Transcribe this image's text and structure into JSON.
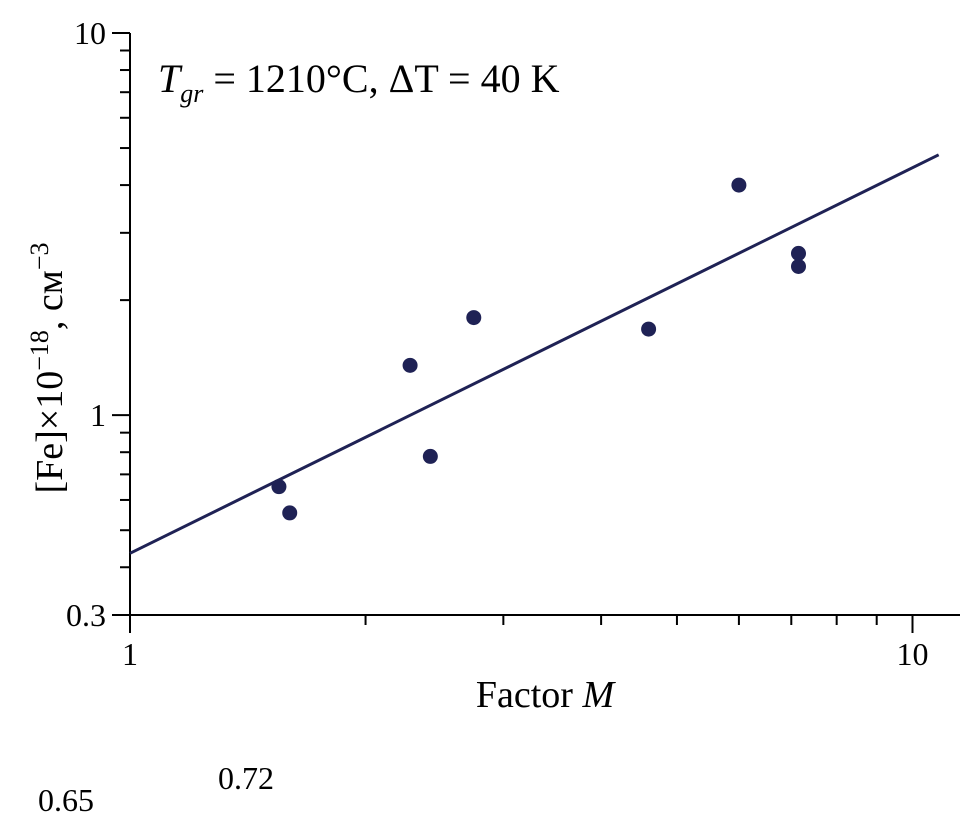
{
  "chart_data": {
    "type": "scatter",
    "x_scale": "log",
    "y_scale": "log",
    "xlim": [
      1,
      11.5
    ],
    "ylim": [
      0.3,
      10
    ],
    "x_ticks": [
      "1",
      "10"
    ],
    "y_ticks": [
      "0.3",
      "1",
      "10"
    ],
    "xlabel_prefix": "Factor ",
    "xlabel_var": "M",
    "ylabel_main": "[Fe]×10",
    "ylabel_exp": "−18",
    "ylabel_unit": ", см",
    "ylabel_unit_exp": "−3",
    "annotation": {
      "t": "T",
      "sub": "gr",
      "rest": " = 1210°C, ΔT = 40 K"
    },
    "points": [
      {
        "x": 1.55,
        "y": 0.65
      },
      {
        "x": 1.6,
        "y": 0.555
      },
      {
        "x": 2.28,
        "y": 1.35
      },
      {
        "x": 2.42,
        "y": 0.78
      },
      {
        "x": 2.75,
        "y": 1.8
      },
      {
        "x": 4.6,
        "y": 1.68
      },
      {
        "x": 6.0,
        "y": 4.0
      },
      {
        "x": 7.15,
        "y": 2.65
      },
      {
        "x": 7.15,
        "y": 2.45
      }
    ],
    "fit_line": [
      {
        "x": 1,
        "y": 0.435
      },
      {
        "x": 10.8,
        "y": 4.8
      }
    ],
    "point_color": "#1f2255",
    "line_color": "#1f2255"
  },
  "stray_labels": [
    "0.65",
    "0.72"
  ]
}
